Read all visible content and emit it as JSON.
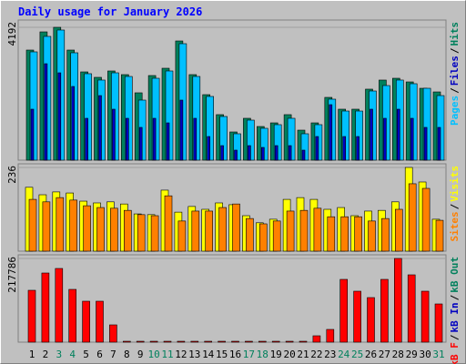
{
  "title": "Daily usage for January 2026",
  "chart_data": [
    {
      "type": "bar",
      "categories": [
        "1",
        "2",
        "3",
        "4",
        "5",
        "6",
        "7",
        "8",
        "9",
        "10",
        "11",
        "12",
        "13",
        "14",
        "15",
        "16",
        "17",
        "18",
        "19",
        "20",
        "21",
        "22",
        "23",
        "24",
        "25",
        "26",
        "27",
        "28",
        "29",
        "30",
        "31"
      ],
      "category_colors": [
        "#000000",
        "#000000",
        "#00805c",
        "#00805c",
        "#000000",
        "#000000",
        "#000000",
        "#000000",
        "#000000",
        "#00805c",
        "#00805c",
        "#000000",
        "#000000",
        "#000000",
        "#000000",
        "#000000",
        "#00805c",
        "#00805c",
        "#000000",
        "#000000",
        "#000000",
        "#000000",
        "#000000",
        "#00805c",
        "#00805c",
        "#000000",
        "#000000",
        "#000000",
        "#000000",
        "#000000",
        "#00805c"
      ],
      "ylim": [
        0,
        4192
      ],
      "yticks": [
        4192
      ],
      "legend_separator": "/",
      "series": [
        {
          "name": "Pages",
          "color": "#00c0ff",
          "values": [
            3417,
            3905,
            4106,
            3388,
            2728,
            2527,
            2756,
            2641,
            1895,
            2584,
            2814,
            3675,
            2641,
            2010,
            1378,
            833,
            1263,
            1005,
            1120,
            1321,
            833,
            1120,
            1924,
            1550,
            1550,
            2182,
            2354,
            2527,
            2412,
            2268,
            2038
          ]
        },
        {
          "name": "Files",
          "color": "#0000c0",
          "values": [
            1608,
            3043,
            2756,
            2325,
            1321,
            2038,
            1608,
            1321,
            1034,
            1321,
            1177,
            1895,
            1321,
            746,
            459,
            316,
            459,
            402,
            459,
            459,
            316,
            746,
            1751,
            746,
            746,
            1608,
            1321,
            1608,
            1321,
            1034,
            1034
          ]
        },
        {
          "name": "Hits",
          "color": "#00805c",
          "values": [
            3474,
            4048,
            4192,
            3474,
            2785,
            2613,
            2814,
            2699,
            2125,
            2670,
            2900,
            3761,
            2699,
            2067,
            1436,
            890,
            1321,
            1062,
            1177,
            1436,
            947,
            1177,
            1981,
            1608,
            1608,
            2240,
            2527,
            2584,
            2469,
            2268,
            2153
          ]
        }
      ]
    },
    {
      "type": "bar",
      "ylim": [
        0,
        236
      ],
      "yticks": [
        236
      ],
      "legend_separator": "/",
      "series": [
        {
          "name": "Sites",
          "color": "#ff8000",
          "values": [
            146,
            139,
            151,
            144,
            128,
            123,
            121,
            115,
            103,
            100,
            156,
            85,
            113,
            113,
            123,
            133,
            92,
            77,
            85,
            113,
            115,
            121,
            97,
            97,
            97,
            85,
            92,
            118,
            190,
            177,
            87
          ]
        },
        {
          "name": "Visits",
          "color": "#ffff00",
          "values": [
            180,
            159,
            167,
            164,
            141,
            136,
            139,
            133,
            105,
            103,
            172,
            110,
            126,
            118,
            136,
            131,
            100,
            80,
            90,
            146,
            151,
            146,
            118,
            123,
            100,
            113,
            115,
            139,
            236,
            195,
            90
          ]
        }
      ]
    },
    {
      "type": "bar",
      "ylim": [
        0,
        217786
      ],
      "yticks": [
        217786
      ],
      "legend_separator": "/",
      "series": [
        {
          "name": "kB F",
          "color": "#ff0000",
          "values": [
            134919,
            179892,
            191727,
            137286,
            106515,
            106515,
            44973,
            2367,
            2367,
            2367,
            2367,
            2367,
            2367,
            2367,
            2367,
            2367,
            2367,
            2367,
            2367,
            2367,
            2367,
            16569,
            33138,
            163323,
            132552,
            115983,
            163323,
            217786,
            175158,
            132552,
            99414
          ]
        },
        {
          "name": "kB In",
          "color": "#0000c0",
          "values": [
            0,
            0,
            0,
            0,
            0,
            0,
            0,
            0,
            0,
            0,
            0,
            0,
            0,
            0,
            0,
            0,
            0,
            0,
            0,
            0,
            0,
            0,
            0,
            0,
            0,
            0,
            0,
            0,
            0,
            0,
            0
          ]
        },
        {
          "name": "kB Out",
          "color": "#00805c",
          "values": [
            0,
            0,
            0,
            0,
            0,
            0,
            0,
            0,
            0,
            0,
            0,
            0,
            0,
            0,
            0,
            0,
            0,
            0,
            0,
            0,
            0,
            0,
            0,
            0,
            0,
            0,
            0,
            0,
            0,
            0,
            0
          ]
        }
      ]
    }
  ]
}
